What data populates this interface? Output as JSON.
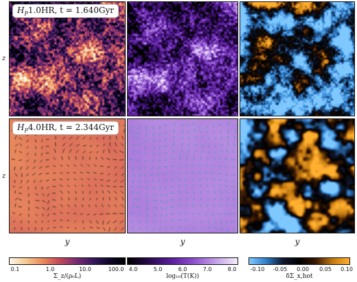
{
  "top_row": {
    "label_var": "H",
    "label_sub": "P",
    "label_rest": "1.0HR, t = 1.640Gyr"
  },
  "bottom_row": {
    "label_var": "H",
    "label_sub": "P",
    "label_rest": "4.0HR, t = 2.344Gyr"
  },
  "axes": {
    "z_label": "z",
    "y_label": "y"
  },
  "colorbars": [
    {
      "label": "Σ_z/(ρ₀L)",
      "ticks": [
        "0.1",
        "1.0",
        "10.0",
        "100.0"
      ]
    },
    {
      "label": "log₁₀(T(K))",
      "ticks": [
        "4.0",
        "5.0",
        "6.0",
        "7.0",
        "8.0"
      ]
    },
    {
      "label": "δΣ_x,hot",
      "ticks": [
        "-0.10",
        "-0.05",
        "0.00",
        "0.05",
        "0.10"
      ]
    }
  ],
  "colormaps": {
    "density": [
      "#fdf8ec",
      "#f4c98f",
      "#ea8a5c",
      "#c64a59",
      "#7b2d72",
      "#3a1a5f",
      "#10062a",
      "#000000"
    ],
    "temperature": [
      "#000000",
      "#2a0a50",
      "#5a1e9c",
      "#8d4fcf",
      "#c39fe6",
      "#f3ecfb"
    ],
    "diverging": [
      "#7fc8ff",
      "#2f7fcc",
      "#111a2e",
      "#000000",
      "#3a1a05",
      "#c57a10",
      "#ffb030"
    ]
  }
}
